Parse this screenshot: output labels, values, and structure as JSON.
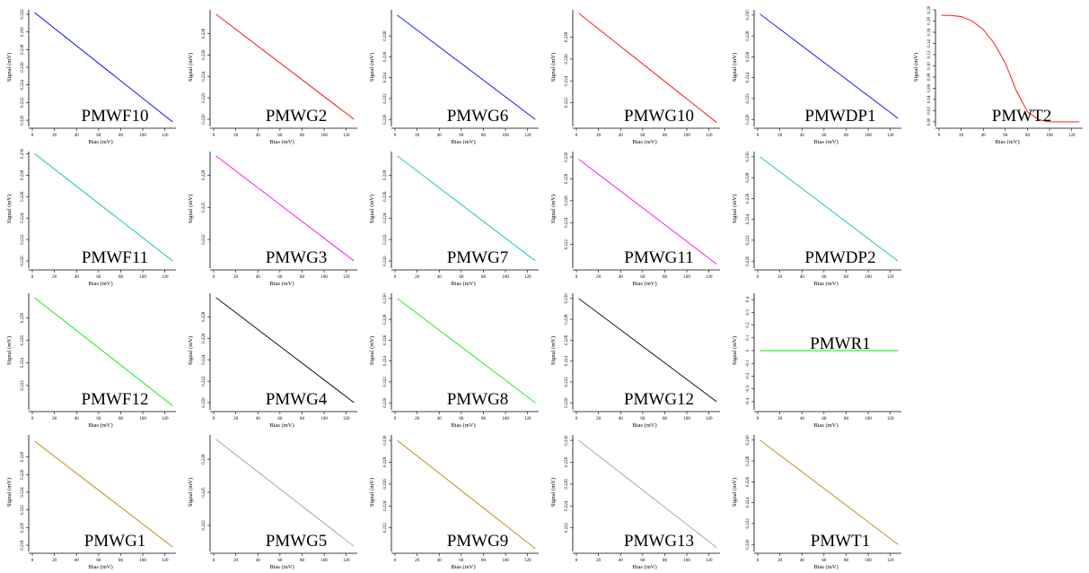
{
  "chart_data": [
    {
      "type": "line",
      "label": "PMWF10",
      "color": "#0000ff",
      "xlabel": "Bias (mV)",
      "ylabel": "Signal (mV)",
      "xlim": [
        0,
        130
      ],
      "ylim": [
        0.2195,
        0.2325
      ],
      "x_ticks": [
        0,
        20,
        40,
        60,
        80,
        100,
        120
      ],
      "y_ticks": [
        0.22,
        0.222,
        0.224,
        0.226,
        0.228,
        0.23,
        0.232
      ],
      "y_tick_labels": [
        "0.220",
        "0.222",
        "0.224",
        "0.226",
        "0.228",
        "0.230",
        "0.232"
      ],
      "x": [
        2,
        127
      ],
      "y": [
        0.2322,
        0.2198
      ]
    },
    {
      "type": "line",
      "label": "PMWG2",
      "color": "#ff0000",
      "xlabel": "Bias (mV)",
      "ylabel": "Signal (mV)",
      "xlim": [
        0,
        130
      ],
      "ylim": [
        0.2195,
        0.2302
      ],
      "x_ticks": [
        0,
        20,
        40,
        60,
        80,
        100,
        120
      ],
      "y_ticks": [
        0.22,
        0.222,
        0.224,
        0.226,
        0.228
      ],
      "y_tick_labels": [
        "0.220",
        "0.222",
        "0.224",
        "0.226",
        "0.228"
      ],
      "x": [
        2,
        127
      ],
      "y": [
        0.2298,
        0.22
      ]
    },
    {
      "type": "line",
      "label": "PMWG6",
      "color": "#0000ff",
      "xlabel": "Bias (mV)",
      "ylabel": "Signal (mV)",
      "xlim": [
        0,
        130
      ],
      "ylim": [
        0.2195,
        0.2305
      ],
      "x_ticks": [
        0,
        20,
        40,
        60,
        80,
        100,
        120
      ],
      "y_ticks": [
        0.22,
        0.222,
        0.224,
        0.226,
        0.228
      ],
      "y_tick_labels": [
        "0.220",
        "0.222",
        "0.224",
        "0.226",
        "0.228"
      ],
      "x": [
        2,
        127
      ],
      "y": [
        0.23,
        0.22
      ]
    },
    {
      "type": "line",
      "label": "PMWG10",
      "color": "#ff0000",
      "xlabel": "Bias (mV)",
      "ylabel": "Signal (mV)",
      "xlim": [
        0,
        130
      ],
      "ylim": [
        0.22,
        0.2305
      ],
      "x_ticks": [
        0,
        20,
        40,
        60,
        80,
        100,
        120
      ],
      "y_ticks": [
        0.222,
        0.224,
        0.226,
        0.228
      ],
      "y_tick_labels": [
        "0.222",
        "0.224",
        "0.226",
        "0.228"
      ],
      "x": [
        2,
        127
      ],
      "y": [
        0.2302,
        0.2202
      ]
    },
    {
      "type": "line",
      "label": "PMWDP1",
      "color": "#0000ff",
      "xlabel": "Bias (mV)",
      "ylabel": "Signal (mV)",
      "xlim": [
        0,
        130
      ],
      "ylim": [
        0.2195,
        0.2305
      ],
      "x_ticks": [
        0,
        20,
        40,
        60,
        80,
        100,
        120
      ],
      "y_ticks": [
        0.22,
        0.222,
        0.224,
        0.226,
        0.228,
        0.23
      ],
      "y_tick_labels": [
        "0.220",
        "0.222",
        "0.224",
        "0.226",
        "0.228",
        "0.230"
      ],
      "x": [
        2,
        127
      ],
      "y": [
        0.2301,
        0.2201
      ]
    },
    {
      "type": "line",
      "label": "PMWT2",
      "color": "#ff0000",
      "xlabel": "Bias (mV)",
      "ylabel": "Signal (mV)",
      "xlim": [
        0,
        130
      ],
      "ylim": [
        -0.005,
        0.2
      ],
      "x_ticks": [
        0,
        20,
        40,
        60,
        80,
        100,
        120
      ],
      "y_ticks": [
        0,
        0.02,
        0.04,
        0.06,
        0.08,
        0.1,
        0.12,
        0.14,
        0.16,
        0.18,
        0.2
      ],
      "y_tick_labels": [
        "0.00",
        "0.02",
        "0.04",
        "0.06",
        "0.08",
        "0.10",
        "0.12",
        "0.14",
        "0.16",
        "0.18",
        "0.20"
      ],
      "x": [
        2,
        10,
        20,
        30,
        40,
        50,
        60,
        70,
        80,
        90,
        100,
        110,
        127
      ],
      "y": [
        0.19,
        0.19,
        0.188,
        0.18,
        0.165,
        0.14,
        0.105,
        0.055,
        0.018,
        0.004,
        0,
        0,
        0
      ]
    },
    {
      "type": "line",
      "label": "PMWF11",
      "color": "#00c0c0",
      "xlabel": "Bias (mV)",
      "ylabel": "Signal (mV)",
      "xlim": [
        0,
        130
      ],
      "ylim": [
        0.2195,
        0.2302
      ],
      "x_ticks": [
        0,
        20,
        40,
        60,
        80,
        100,
        120
      ],
      "y_ticks": [
        0.22,
        0.222,
        0.224,
        0.226,
        0.228,
        0.23
      ],
      "y_tick_labels": [
        "0.220",
        "0.222",
        "0.224",
        "0.226",
        "0.228",
        "0.230"
      ],
      "x": [
        2,
        127
      ],
      "y": [
        0.23,
        0.22
      ]
    },
    {
      "type": "line",
      "label": "PMWG3",
      "color": "#ff00ff",
      "xlabel": "Bias (mV)",
      "ylabel": "Signal (mV)",
      "xlim": [
        0,
        130
      ],
      "ylim": [
        0.2195,
        0.2302
      ],
      "x_ticks": [
        0,
        20,
        40,
        60,
        80,
        100,
        120
      ],
      "y_ticks": [
        0.222,
        0.225,
        0.228
      ],
      "y_tick_labels": [
        "0.222",
        "0.225",
        "0.228"
      ],
      "x": [
        2,
        127
      ],
      "y": [
        0.2298,
        0.22
      ]
    },
    {
      "type": "line",
      "label": "PMWG7",
      "color": "#00c0c0",
      "xlabel": "Bias (mV)",
      "ylabel": "Signal (mV)",
      "xlim": [
        0,
        130
      ],
      "ylim": [
        0.2195,
        0.2302
      ],
      "x_ticks": [
        0,
        20,
        40,
        60,
        80,
        100,
        120
      ],
      "y_ticks": [
        0.22,
        0.222,
        0.224,
        0.226,
        0.228
      ],
      "y_tick_labels": [
        "0.220",
        "0.222",
        "0.224",
        "0.226",
        "0.228"
      ],
      "x": [
        2,
        127
      ],
      "y": [
        0.2298,
        0.22
      ]
    },
    {
      "type": "line",
      "label": "PMWG11",
      "color": "#ff00ff",
      "xlabel": "Bias (mV)",
      "ylabel": "Signal (mV)",
      "xlim": [
        0,
        130
      ],
      "ylim": [
        0.22,
        0.2305
      ],
      "x_ticks": [
        0,
        20,
        40,
        60,
        80,
        100,
        120
      ],
      "y_ticks": [
        0.222,
        0.224,
        0.226,
        0.228,
        0.23
      ],
      "y_tick_labels": [
        "0.222",
        "0.224",
        "0.226",
        "0.228",
        "0.230"
      ],
      "x": [
        2,
        127
      ],
      "y": [
        0.2298,
        0.2202
      ]
    },
    {
      "type": "line",
      "label": "PMWDP2",
      "color": "#00c0c0",
      "xlabel": "Bias (mV)",
      "ylabel": "Signal (mV)",
      "xlim": [
        0,
        130
      ],
      "ylim": [
        0.2195,
        0.2305
      ],
      "x_ticks": [
        0,
        20,
        40,
        60,
        80,
        100,
        120
      ],
      "y_ticks": [
        0.22,
        0.222,
        0.224,
        0.226,
        0.228,
        0.23
      ],
      "y_tick_labels": [
        "0.220",
        "0.222",
        "0.224",
        "0.226",
        "0.228",
        "0.230"
      ],
      "x": [
        2,
        127
      ],
      "y": [
        0.23,
        0.22
      ]
    },
    null,
    {
      "type": "line",
      "label": "PMWF12",
      "color": "#00ee00",
      "xlabel": "Bias (mV)",
      "ylabel": "Signal (mV)",
      "xlim": [
        0,
        130
      ],
      "ylim": [
        0.22,
        0.2302
      ],
      "x_ticks": [
        0,
        20,
        40,
        60,
        80,
        100,
        120
      ],
      "y_ticks": [
        0.222,
        0.224,
        0.226,
        0.228
      ],
      "y_tick_labels": [
        "0.222",
        "0.224",
        "0.226",
        "0.228"
      ],
      "x": [
        2,
        127
      ],
      "y": [
        0.2298,
        0.2202
      ]
    },
    {
      "type": "line",
      "label": "PMWG4",
      "color": "#000000",
      "xlabel": "Bias (mV)",
      "ylabel": "Signal (mV)",
      "xlim": [
        0,
        130
      ],
      "ylim": [
        0.2195,
        0.2302
      ],
      "x_ticks": [
        0,
        20,
        40,
        60,
        80,
        100,
        120
      ],
      "y_ticks": [
        0.22,
        0.222,
        0.224,
        0.226,
        0.228
      ],
      "y_tick_labels": [
        "0.220",
        "0.222",
        "0.224",
        "0.226",
        "0.228"
      ],
      "x": [
        2,
        127
      ],
      "y": [
        0.2298,
        0.22
      ]
    },
    {
      "type": "line",
      "label": "PMWG8",
      "color": "#00ee00",
      "xlabel": "Bias (mV)",
      "ylabel": "Signal (mV)",
      "xlim": [
        0,
        130
      ],
      "ylim": [
        0.2195,
        0.2305
      ],
      "x_ticks": [
        0,
        20,
        40,
        60,
        80,
        100,
        120
      ],
      "y_ticks": [
        0.22,
        0.222,
        0.224,
        0.226,
        0.228,
        0.23
      ],
      "y_tick_labels": [
        "0.220",
        "0.222",
        "0.224",
        "0.226",
        "0.228",
        "0.230"
      ],
      "x": [
        2,
        127
      ],
      "y": [
        0.23,
        0.22
      ]
    },
    {
      "type": "line",
      "label": "PMWG12",
      "color": "#000000",
      "xlabel": "Bias (mV)",
      "ylabel": "Signal (mV)",
      "xlim": [
        0,
        130
      ],
      "ylim": [
        0.2195,
        0.2305
      ],
      "x_ticks": [
        0,
        20,
        40,
        60,
        80,
        100,
        120
      ],
      "y_ticks": [
        0.22,
        0.222,
        0.224,
        0.226,
        0.228,
        0.23
      ],
      "y_tick_labels": [
        "0.220",
        "0.222",
        "0.224",
        "0.226",
        "0.228",
        "0.230"
      ],
      "x": [
        2,
        127
      ],
      "y": [
        0.23,
        0.2201
      ]
    },
    {
      "type": "line",
      "label": "PMWR1",
      "color": "#00ee00",
      "xlabel": "Bias (mV)",
      "ylabel": "Signal (mV)",
      "xlim": [
        0,
        130
      ],
      "ylim": [
        -0.45,
        0.45
      ],
      "x_ticks": [
        0,
        20,
        40,
        60,
        80,
        100,
        120
      ],
      "y_ticks": [
        -0.4,
        -0.3,
        -0.2,
        -0.1,
        0,
        0.1,
        0.2,
        0.3,
        0.4
      ],
      "y_tick_labels": [
        "-0.4",
        "-0.3",
        "-0.2",
        "-0.1",
        "0",
        "0.1",
        "0.2",
        "0.3",
        "0.4"
      ],
      "x": [
        2,
        127
      ],
      "y": [
        0,
        0
      ]
    },
    null,
    {
      "type": "line",
      "label": "PMWG1",
      "color": "#c08000",
      "xlabel": "Bias (mV)",
      "ylabel": "Signal (mV)",
      "xlim": [
        0,
        130
      ],
      "ylim": [
        0.2175,
        0.2305
      ],
      "x_ticks": [
        0,
        20,
        40,
        60,
        80,
        100,
        120
      ],
      "y_ticks": [
        0.218,
        0.22,
        0.222,
        0.224,
        0.226,
        0.228
      ],
      "y_tick_labels": [
        "0.218",
        "0.220",
        "0.222",
        "0.224",
        "0.226",
        "0.228"
      ],
      "x": [
        2,
        127
      ],
      "y": [
        0.2298,
        0.2178
      ]
    },
    {
      "type": "line",
      "label": "PMWG5",
      "color": "#a0a0a0",
      "xlabel": "Bias (mV)",
      "ylabel": "Signal (mV)",
      "xlim": [
        0,
        130
      ],
      "ylim": [
        0.2198,
        0.2302
      ],
      "x_ticks": [
        0,
        20,
        40,
        60,
        80,
        100,
        120
      ],
      "y_ticks": [
        0.222,
        0.225,
        0.228
      ],
      "y_tick_labels": [
        "0.222",
        "0.225",
        "0.228"
      ],
      "x": [
        2,
        127
      ],
      "y": [
        0.2298,
        0.2201
      ]
    },
    {
      "type": "line",
      "label": "PMWG9",
      "color": "#c08000",
      "xlabel": "Bias (mV)",
      "ylabel": "Signal (mV)",
      "xlim": [
        0,
        130
      ],
      "ylim": [
        0.22,
        0.2305
      ],
      "x_ticks": [
        0,
        20,
        40,
        60,
        80,
        100,
        120
      ],
      "y_ticks": [
        0.222,
        0.224,
        0.226,
        0.228,
        0.23
      ],
      "y_tick_labels": [
        "0.222",
        "0.224",
        "0.226",
        "0.228",
        "0.230"
      ],
      "x": [
        2,
        127
      ],
      "y": [
        0.23,
        0.2201
      ]
    },
    {
      "type": "line",
      "label": "PMWG13",
      "color": "#a0a0a0",
      "xlabel": "Bias (mV)",
      "ylabel": "Signal (mV)",
      "xlim": [
        0,
        130
      ],
      "ylim": [
        0.22,
        0.2305
      ],
      "x_ticks": [
        0,
        20,
        40,
        60,
        80,
        100,
        120
      ],
      "y_ticks": [
        0.222,
        0.224,
        0.226,
        0.228,
        0.23
      ],
      "y_tick_labels": [
        "0.222",
        "0.224",
        "0.226",
        "0.228",
        "0.230"
      ],
      "x": [
        2,
        127
      ],
      "y": [
        0.23,
        0.2202
      ]
    },
    {
      "type": "line",
      "label": "PMWT1",
      "color": "#c08000",
      "xlabel": "Bias (mV)",
      "ylabel": "Signal (mV)",
      "xlim": [
        0,
        130
      ],
      "ylim": [
        0.2195,
        0.2305
      ],
      "x_ticks": [
        0,
        20,
        40,
        60,
        80,
        100,
        120
      ],
      "y_ticks": [
        0.22,
        0.222,
        0.224,
        0.226,
        0.228,
        0.23
      ],
      "y_tick_labels": [
        "0.220",
        "0.222",
        "0.224",
        "0.226",
        "0.228",
        "0.230"
      ],
      "x": [
        2,
        127
      ],
      "y": [
        0.23,
        0.22
      ]
    },
    null
  ]
}
